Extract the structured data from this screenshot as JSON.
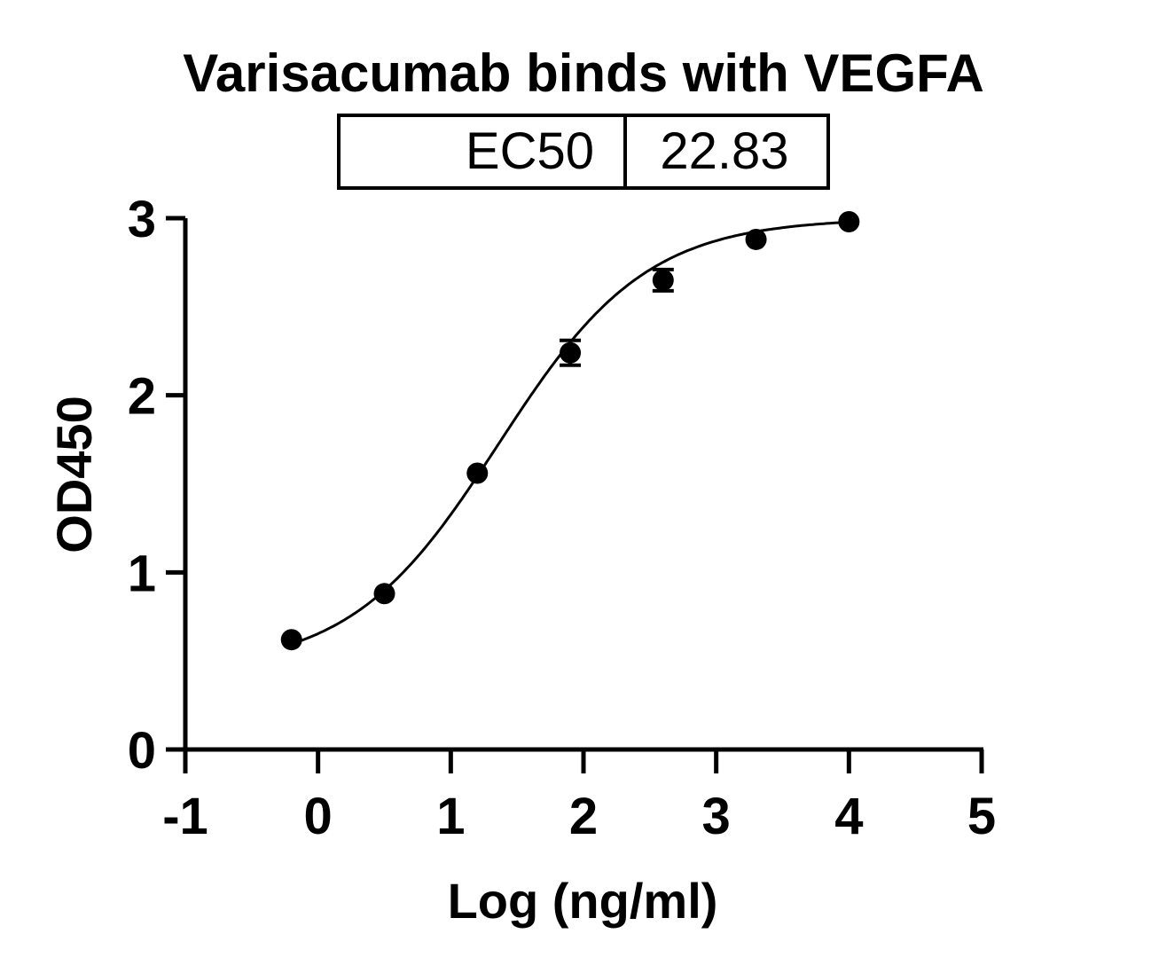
{
  "chart_data": {
    "type": "scatter",
    "title": "Varisacumab binds with VEGFA",
    "xlabel": "Log (ng/ml)",
    "ylabel": "OD450",
    "xlim": [
      -1,
      5
    ],
    "ylim": [
      0,
      3
    ],
    "xticks": [
      -1,
      0,
      1,
      2,
      3,
      4,
      5
    ],
    "yticks": [
      0,
      1,
      2,
      3
    ],
    "grid": false,
    "legend": null,
    "fit": "sigmoidal 4PL curve",
    "annotation_table": {
      "label": "EC50",
      "value": "22.83"
    },
    "series": [
      {
        "name": "Varisacumab",
        "marker": "filled-circle",
        "color": "#000000",
        "x": [
          -0.2,
          0.5,
          1.2,
          1.9,
          2.6,
          3.3,
          4.0
        ],
        "y": [
          0.62,
          0.88,
          1.56,
          2.24,
          2.65,
          2.88,
          2.98
        ],
        "error": [
          0.0,
          0.0,
          0.0,
          0.07,
          0.06,
          0.0,
          0.0
        ]
      }
    ],
    "curve_params": {
      "bottom": 0.45,
      "top": 3.0,
      "logEC50": 1.36,
      "hill": 0.78
    }
  }
}
